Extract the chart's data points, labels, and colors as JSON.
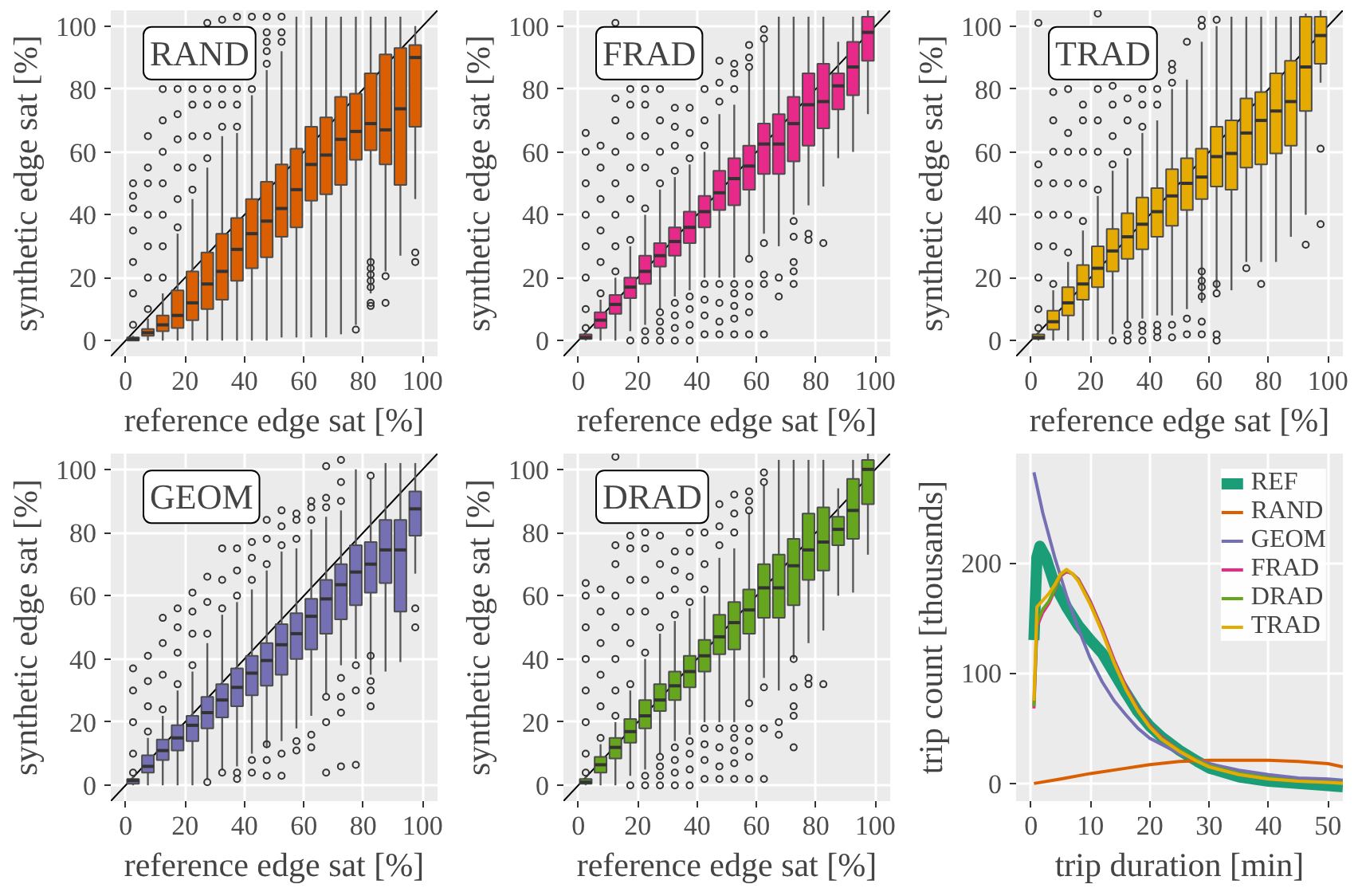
{
  "chart_data": [
    {
      "type": "box",
      "title": "RAND",
      "color": "#d95f02",
      "xlabel": "reference edge sat [%]",
      "ylabel": "synthetic edge sat [%]",
      "xlim": [
        -5,
        105
      ],
      "ylim": [
        -5,
        105
      ],
      "xticks": [
        0,
        20,
        40,
        60,
        80,
        100
      ],
      "yticks": [
        0,
        20,
        40,
        60,
        80,
        100
      ],
      "grid": true,
      "x": [
        2.5,
        7.5,
        12.5,
        17.5,
        22.5,
        27.5,
        32.5,
        37.5,
        42.5,
        47.5,
        52.5,
        57.5,
        62.5,
        67.5,
        72.5,
        77.5,
        82.5,
        87.5,
        92.5,
        97.5
      ],
      "boxes": [
        {
          "low": 0,
          "q1": 0,
          "median": 0.5,
          "q3": 1,
          "high": 1.5,
          "outliers": [
            5,
            15,
            25,
            35,
            42,
            46,
            50
          ]
        },
        {
          "low": 0,
          "q1": 1.5,
          "median": 2.5,
          "q3": 3.7,
          "high": 7,
          "outliers": [
            10,
            20,
            30,
            40,
            50,
            55,
            65
          ]
        },
        {
          "low": 0,
          "q1": 3,
          "median": 5,
          "q3": 8,
          "high": 15,
          "outliers": [
            20,
            30,
            40,
            50,
            60,
            70,
            80
          ]
        },
        {
          "low": 0,
          "q1": 4,
          "median": 8,
          "q3": 16,
          "high": 34,
          "outliers": [
            36,
            45,
            55,
            64,
            72,
            80
          ]
        },
        {
          "low": 0,
          "q1": 6.5,
          "median": 12,
          "q3": 22,
          "high": 45,
          "outliers": [
            48,
            55,
            65,
            75,
            80
          ]
        },
        {
          "low": 0,
          "q1": 10,
          "median": 18,
          "q3": 28,
          "high": 55,
          "outliers": [
            58,
            65,
            75,
            80,
            101
          ]
        },
        {
          "low": 0,
          "q1": 13,
          "median": 22,
          "q3": 34,
          "high": 65,
          "outliers": [
            68,
            75,
            80,
            102
          ]
        },
        {
          "low": 0,
          "q1": 19,
          "median": 29,
          "q3": 39,
          "high": 66,
          "outliers": [
            68,
            75,
            80,
            103
          ]
        },
        {
          "low": 0,
          "q1": 23,
          "median": 34,
          "q3": 45,
          "high": 78,
          "outliers": [
            80,
            103
          ]
        },
        {
          "low": 0,
          "q1": 26.5,
          "median": 38,
          "q3": 50.5,
          "high": 86,
          "outliers": [
            88,
            92,
            95,
            98,
            103
          ]
        },
        {
          "low": 1,
          "q1": 33,
          "median": 42,
          "q3": 56,
          "high": 92,
          "outliers": [
            95,
            98,
            103
          ]
        },
        {
          "low": 1,
          "q1": 36,
          "median": 48,
          "q3": 61,
          "high": 103
        },
        {
          "low": 1,
          "q1": 44.5,
          "median": 56,
          "q3": 68,
          "high": 103
        },
        {
          "low": 1,
          "q1": 46.5,
          "median": 59,
          "q3": 71,
          "high": 103
        },
        {
          "low": 2,
          "q1": 49.5,
          "median": 64,
          "q3": 77.5,
          "high": 103
        },
        {
          "low": 5,
          "q1": 57.5,
          "median": 66.5,
          "q3": 78.5,
          "high": 103,
          "outliers": [
            3.5
          ]
        },
        {
          "low": 15,
          "q1": 60.5,
          "median": 69,
          "q3": 85,
          "high": 103,
          "outliers": [
            11,
            12,
            17,
            19,
            21,
            23,
            25
          ]
        },
        {
          "low": 22,
          "q1": 56,
          "median": 67,
          "q3": 91,
          "high": 103,
          "outliers": [
            12,
            20.5
          ]
        },
        {
          "low": 27,
          "q1": 49.5,
          "median": 73.7,
          "q3": 93,
          "high": 103
        },
        {
          "low": 45,
          "q1": 68,
          "median": 90,
          "q3": 94,
          "high": 100,
          "outliers": [
            25,
            28
          ]
        }
      ],
      "series": [
        {
          "type": "line",
          "x": [
            -5,
            105
          ],
          "values": [
            -5,
            105
          ],
          "color": "#000000"
        }
      ]
    },
    {
      "type": "box",
      "title": "FRAD",
      "color": "#e7298a",
      "xlabel": "reference edge sat [%]",
      "ylabel": "synthetic edge sat [%]",
      "xlim": [
        -5,
        105
      ],
      "ylim": [
        -5,
        105
      ],
      "xticks": [
        0,
        20,
        40,
        60,
        80,
        100
      ],
      "yticks": [
        0,
        20,
        40,
        60,
        80,
        100
      ],
      "grid": true,
      "x": [
        2.5,
        7.5,
        12.5,
        17.5,
        22.5,
        27.5,
        32.5,
        37.5,
        42.5,
        47.5,
        52.5,
        57.5,
        62.5,
        67.5,
        72.5,
        77.5,
        82.5,
        87.5,
        92.5,
        97.5
      ],
      "boxes": [
        {
          "low": 0,
          "q1": 0.5,
          "median": 1,
          "q3": 2,
          "high": 3,
          "outliers": [
            4,
            10,
            20,
            30,
            40,
            50,
            60,
            66
          ]
        },
        {
          "low": 0,
          "q1": 4,
          "median": 6.5,
          "q3": 9,
          "high": 13,
          "outliers": [
            15,
            25,
            35,
            45,
            55,
            62
          ]
        },
        {
          "low": 0,
          "q1": 8.5,
          "median": 11.5,
          "q3": 14.5,
          "high": 20,
          "outliers": [
            22,
            30,
            40,
            50,
            60,
            70,
            77,
            101
          ]
        },
        {
          "low": 3,
          "q1": 13.5,
          "median": 17,
          "q3": 20,
          "high": 30,
          "outliers": [
            0,
            32,
            45,
            55,
            65,
            75,
            80
          ]
        },
        {
          "low": 5,
          "q1": 18,
          "median": 22,
          "q3": 27,
          "high": 40,
          "outliers": [
            0,
            3,
            42,
            55,
            65,
            75,
            80
          ]
        },
        {
          "low": 10,
          "q1": 23.5,
          "median": 27,
          "q3": 31,
          "high": 48,
          "outliers": [
            0,
            3,
            6,
            9,
            50,
            60,
            70,
            80
          ]
        },
        {
          "low": 14,
          "q1": 27,
          "median": 31.5,
          "q3": 36,
          "high": 52,
          "outliers": [
            0,
            4,
            8,
            12,
            54,
            62,
            68,
            74
          ]
        },
        {
          "low": 16,
          "q1": 31,
          "median": 36,
          "q3": 41,
          "high": 56,
          "outliers": [
            0,
            5,
            10,
            14,
            58,
            66,
            74
          ]
        },
        {
          "low": 20,
          "q1": 36,
          "median": 41,
          "q3": 46,
          "high": 60,
          "outliers": [
            2,
            8,
            13,
            18,
            62,
            70,
            80
          ]
        },
        {
          "low": 20,
          "q1": 41.5,
          "median": 47,
          "q3": 54,
          "high": 72,
          "outliers": [
            2,
            6,
            12,
            18,
            76,
            82,
            89
          ]
        },
        {
          "low": 20,
          "q1": 43,
          "median": 51.5,
          "q3": 58,
          "high": 75,
          "outliers": [
            2,
            7,
            11,
            15,
            18,
            80,
            85,
            88
          ]
        },
        {
          "low": 27,
          "q1": 48,
          "median": 55.5,
          "q3": 62,
          "high": 86,
          "outliers": [
            2,
            9,
            14,
            18,
            26,
            87,
            90,
            94
          ]
        },
        {
          "low": 34,
          "q1": 53,
          "median": 62.5,
          "q3": 69,
          "high": 95,
          "outliers": [
            2,
            18,
            21,
            31,
            96,
            99
          ]
        },
        {
          "low": 30,
          "q1": 53,
          "median": 62.5,
          "q3": 72,
          "high": 103,
          "outliers": [
            14,
            20
          ]
        },
        {
          "low": 40,
          "q1": 57,
          "median": 69,
          "q3": 77.5,
          "high": 103,
          "outliers": [
            18,
            22,
            25,
            33,
            38
          ]
        },
        {
          "low": 43,
          "q1": 62,
          "median": 75,
          "q3": 85,
          "high": 103,
          "outliers": [
            32,
            34
          ]
        },
        {
          "low": 49,
          "q1": 67.5,
          "median": 76,
          "q3": 88,
          "high": 103,
          "outliers": [
            31
          ]
        },
        {
          "low": 58,
          "q1": 73.5,
          "median": 81,
          "q3": 85,
          "high": 95
        },
        {
          "low": 60,
          "q1": 78,
          "median": 87,
          "q3": 95,
          "high": 103
        },
        {
          "low": 72,
          "q1": 89,
          "median": 98,
          "q3": 103,
          "high": 105
        }
      ],
      "series": [
        {
          "type": "line",
          "x": [
            -5,
            105
          ],
          "values": [
            -5,
            105
          ],
          "color": "#000000"
        }
      ]
    },
    {
      "type": "box",
      "title": "TRAD",
      "color": "#e6ab02",
      "xlabel": "reference edge sat [%]",
      "ylabel": "synthetic edge sat [%]",
      "xlim": [
        -5,
        105
      ],
      "ylim": [
        -5,
        105
      ],
      "xticks": [
        0,
        20,
        40,
        60,
        80,
        100
      ],
      "yticks": [
        0,
        20,
        40,
        60,
        80,
        100
      ],
      "grid": true,
      "x": [
        2.5,
        7.5,
        12.5,
        17.5,
        22.5,
        27.5,
        32.5,
        37.5,
        42.5,
        47.5,
        52.5,
        57.5,
        62.5,
        67.5,
        72.5,
        77.5,
        82.5,
        87.5,
        92.5,
        97.5
      ],
      "boxes": [
        {
          "low": 0,
          "q1": 0.5,
          "median": 1,
          "q3": 2,
          "high": 3,
          "outliers": [
            4,
            10,
            20,
            30,
            40,
            50,
            56,
            101
          ]
        },
        {
          "low": 0,
          "q1": 3.5,
          "median": 6,
          "q3": 9.5,
          "high": 16,
          "outliers": [
            18,
            30,
            40,
            50,
            60,
            70,
            79
          ]
        },
        {
          "low": 0,
          "q1": 8,
          "median": 12,
          "q3": 17,
          "high": 25,
          "outliers": [
            28,
            40,
            50,
            60,
            66,
            80
          ]
        },
        {
          "low": 0,
          "q1": 13,
          "median": 18,
          "q3": 24,
          "high": 35,
          "outliers": [
            38,
            50,
            60,
            70,
            75
          ]
        },
        {
          "low": 0,
          "q1": 17,
          "median": 23,
          "q3": 30,
          "high": 46,
          "outliers": [
            48,
            60,
            70,
            80,
            104
          ]
        },
        {
          "low": 2,
          "q1": 22,
          "median": 28.5,
          "q3": 35.5,
          "high": 54,
          "outliers": [
            0,
            56,
            65,
            75,
            81
          ]
        },
        {
          "low": 6,
          "q1": 26,
          "median": 33,
          "q3": 40.5,
          "high": 58,
          "outliers": [
            0,
            2,
            5,
            60,
            70,
            77
          ]
        },
        {
          "low": 7,
          "q1": 29,
          "median": 37,
          "q3": 45.5,
          "high": 66,
          "outliers": [
            0,
            3,
            5,
            68,
            75,
            80
          ]
        },
        {
          "low": 8,
          "q1": 33,
          "median": 41,
          "q3": 48.5,
          "high": 70,
          "outliers": [
            1,
            3,
            5,
            75,
            80
          ]
        },
        {
          "low": 8,
          "q1": 36.5,
          "median": 46,
          "q3": 54.5,
          "high": 80,
          "outliers": [
            1,
            5,
            82,
            86,
            88
          ]
        },
        {
          "low": 10,
          "q1": 41.5,
          "median": 50,
          "q3": 58,
          "high": 83,
          "outliers": [
            2,
            7,
            95
          ]
        },
        {
          "low": 12,
          "q1": 45,
          "median": 52,
          "q3": 61,
          "high": 95,
          "outliers": [
            2,
            6,
            14,
            17,
            19,
            22,
            100,
            102
          ]
        },
        {
          "low": 16,
          "q1": 49,
          "median": 58.5,
          "q3": 68,
          "high": 100,
          "outliers": [
            0,
            2,
            15,
            18,
            102
          ]
        },
        {
          "low": 16,
          "q1": 48,
          "median": 59.5,
          "q3": 70,
          "high": 103
        },
        {
          "low": 25,
          "q1": 55,
          "median": 66,
          "q3": 77,
          "high": 103,
          "outliers": [
            23
          ]
        },
        {
          "low": 25,
          "q1": 56,
          "median": 70,
          "q3": 79,
          "high": 103,
          "outliers": [
            18
          ]
        },
        {
          "low": 25,
          "q1": 59.5,
          "median": 73,
          "q3": 85,
          "high": 103
        },
        {
          "low": 33,
          "q1": 62,
          "median": 76,
          "q3": 89,
          "high": 103
        },
        {
          "low": 40,
          "q1": 73,
          "median": 87,
          "q3": 103,
          "high": 104,
          "outliers": [
            30.5
          ]
        },
        {
          "low": 82,
          "q1": 88,
          "median": 97,
          "q3": 103,
          "high": 105,
          "outliers": [
            37,
            61
          ]
        }
      ],
      "series": [
        {
          "type": "line",
          "x": [
            -5,
            105
          ],
          "values": [
            -5,
            105
          ],
          "color": "#000000"
        }
      ]
    },
    {
      "type": "box",
      "title": "GEOM",
      "color": "#7570b3",
      "xlabel": "reference edge sat [%]",
      "ylabel": "synthetic edge sat [%]",
      "xlim": [
        -5,
        105
      ],
      "ylim": [
        -5,
        105
      ],
      "xticks": [
        0,
        20,
        40,
        60,
        80,
        100
      ],
      "yticks": [
        0,
        20,
        40,
        60,
        80,
        100
      ],
      "grid": true,
      "x": [
        2.5,
        7.5,
        12.5,
        17.5,
        22.5,
        27.5,
        32.5,
        37.5,
        42.5,
        47.5,
        52.5,
        57.5,
        62.5,
        67.5,
        72.5,
        77.5,
        82.5,
        87.5,
        92.5,
        97.5
      ],
      "boxes": [
        {
          "low": 0,
          "q1": 0.5,
          "median": 1.5,
          "q3": 2,
          "high": 3,
          "outliers": [
            4,
            10,
            20,
            30,
            37
          ]
        },
        {
          "low": 0,
          "q1": 4,
          "median": 6,
          "q3": 9.5,
          "high": 15,
          "outliers": [
            17,
            25,
            33,
            41
          ]
        },
        {
          "low": 0,
          "q1": 8,
          "median": 11,
          "q3": 14.5,
          "high": 22,
          "outliers": [
            24,
            35,
            45,
            53
          ]
        },
        {
          "low": 0,
          "q1": 11,
          "median": 15,
          "q3": 19,
          "high": 30,
          "outliers": [
            32,
            42,
            50,
            56
          ]
        },
        {
          "low": 0,
          "q1": 14,
          "median": 19,
          "q3": 22,
          "high": 36,
          "outliers": [
            38,
            48,
            55,
            61
          ]
        },
        {
          "low": 2,
          "q1": 18,
          "median": 23,
          "q3": 28,
          "high": 45,
          "outliers": [
            1,
            48,
            58,
            66
          ]
        },
        {
          "low": 5,
          "q1": 21.5,
          "median": 27,
          "q3": 32,
          "high": 54,
          "outliers": [
            4,
            56,
            65,
            75
          ]
        },
        {
          "low": 6,
          "q1": 25,
          "median": 31,
          "q3": 37,
          "high": 58,
          "outliers": [
            2,
            4,
            60,
            68,
            75
          ]
        },
        {
          "low": 10,
          "q1": 28.5,
          "median": 35.5,
          "q3": 41,
          "high": 62,
          "outliers": [
            4,
            8,
            65,
            72,
            77
          ]
        },
        {
          "low": 12,
          "q1": 31.5,
          "median": 39.5,
          "q3": 45,
          "high": 68,
          "outliers": [
            3,
            8,
            13,
            70,
            78,
            84
          ]
        },
        {
          "low": 14,
          "q1": 35,
          "median": 44.5,
          "q3": 51,
          "high": 74,
          "outliers": [
            3,
            10,
            76,
            82,
            87
          ]
        },
        {
          "low": 18,
          "q1": 40,
          "median": 48,
          "q3": 54.5,
          "high": 75,
          "outliers": [
            11,
            14,
            78,
            84,
            86
          ]
        },
        {
          "low": 22,
          "q1": 43,
          "median": 53.5,
          "q3": 59,
          "high": 81,
          "outliers": [
            12,
            16,
            84,
            88,
            90
          ]
        },
        {
          "low": 29,
          "q1": 48,
          "median": 59,
          "q3": 65,
          "high": 85,
          "outliers": [
            4,
            20,
            28,
            88,
            91,
            101
          ]
        },
        {
          "low": 38,
          "q1": 52.5,
          "median": 63.5,
          "q3": 70,
          "high": 87,
          "outliers": [
            6,
            23,
            28,
            34,
            90,
            96,
            103
          ]
        },
        {
          "low": 40,
          "q1": 57,
          "median": 67.5,
          "q3": 76,
          "high": 100,
          "outliers": [
            6.5,
            30,
            38
          ]
        },
        {
          "low": 35,
          "q1": 61,
          "median": 70,
          "q3": 77,
          "high": 97,
          "outliers": [
            25,
            30,
            33,
            41,
            98
          ]
        },
        {
          "low": 36,
          "q1": 64,
          "median": 74.5,
          "q3": 84,
          "high": 102
        },
        {
          "low": 39,
          "q1": 55,
          "median": 74.5,
          "q3": 84,
          "high": 102
        },
        {
          "low": 67,
          "q1": 79,
          "median": 87.5,
          "q3": 93,
          "high": 102,
          "outliers": [
            50,
            56
          ]
        }
      ],
      "series": [
        {
          "type": "line",
          "x": [
            -5,
            105
          ],
          "values": [
            -5,
            105
          ],
          "color": "#000000"
        }
      ]
    },
    {
      "type": "box",
      "title": "DRAD",
      "color": "#66a61e",
      "xlabel": "reference edge sat [%]",
      "ylabel": "synthetic edge sat [%]",
      "xlim": [
        -5,
        105
      ],
      "ylim": [
        -5,
        105
      ],
      "xticks": [
        0,
        20,
        40,
        60,
        80,
        100
      ],
      "yticks": [
        0,
        20,
        40,
        60,
        80,
        100
      ],
      "grid": true,
      "x": [
        2.5,
        7.5,
        12.5,
        17.5,
        22.5,
        27.5,
        32.5,
        37.5,
        42.5,
        47.5,
        52.5,
        57.5,
        62.5,
        67.5,
        72.5,
        77.5,
        82.5,
        87.5,
        92.5,
        97.5
      ],
      "boxes": [
        {
          "low": 0,
          "q1": 0.5,
          "median": 1,
          "q3": 2,
          "high": 3,
          "outliers": [
            4,
            10,
            20,
            30,
            40,
            50,
            60,
            64
          ]
        },
        {
          "low": 0,
          "q1": 4,
          "median": 6.5,
          "q3": 9,
          "high": 13,
          "outliers": [
            15,
            25,
            35,
            45,
            55,
            62
          ]
        },
        {
          "low": 0,
          "q1": 8.5,
          "median": 12,
          "q3": 15,
          "high": 20,
          "outliers": [
            22,
            30,
            40,
            50,
            60,
            70,
            76,
            104
          ]
        },
        {
          "low": 3,
          "q1": 13.5,
          "median": 17,
          "q3": 21,
          "high": 30,
          "outliers": [
            0,
            32,
            45,
            55,
            65,
            75,
            79
          ]
        },
        {
          "low": 5,
          "q1": 18,
          "median": 22,
          "q3": 27,
          "high": 40,
          "outliers": [
            0,
            3,
            42,
            55,
            65,
            75,
            80
          ]
        },
        {
          "low": 10,
          "q1": 23.5,
          "median": 27,
          "q3": 32,
          "high": 48,
          "outliers": [
            0,
            3,
            6,
            9,
            50,
            60,
            70,
            79
          ]
        },
        {
          "low": 14,
          "q1": 27,
          "median": 31.5,
          "q3": 36,
          "high": 52,
          "outliers": [
            0,
            4,
            8,
            12,
            54,
            62,
            68,
            74
          ]
        },
        {
          "low": 16,
          "q1": 31,
          "median": 36,
          "q3": 41,
          "high": 56,
          "outliers": [
            0,
            5,
            10,
            14,
            58,
            66,
            74,
            80
          ]
        },
        {
          "low": 20,
          "q1": 36,
          "median": 41,
          "q3": 46,
          "high": 60,
          "outliers": [
            2,
            8,
            13,
            18,
            62,
            70,
            80
          ]
        },
        {
          "low": 20,
          "q1": 41.5,
          "median": 47,
          "q3": 54,
          "high": 72,
          "outliers": [
            2,
            6,
            12,
            18,
            76,
            82,
            89
          ]
        },
        {
          "low": 20,
          "q1": 43,
          "median": 51.5,
          "q3": 58,
          "high": 75,
          "outliers": [
            2,
            7,
            11,
            15,
            18,
            80,
            86,
            92
          ]
        },
        {
          "low": 27,
          "q1": 48,
          "median": 55.5,
          "q3": 62,
          "high": 86,
          "outliers": [
            2,
            9,
            14,
            18,
            26,
            87,
            90,
            93
          ]
        },
        {
          "low": 34,
          "q1": 53,
          "median": 62.5,
          "q3": 70,
          "high": 95,
          "outliers": [
            2,
            18,
            31,
            96,
            99
          ]
        },
        {
          "low": 30,
          "q1": 53,
          "median": 62.5,
          "q3": 73,
          "high": 103,
          "outliers": [
            16,
            20
          ]
        },
        {
          "low": 40,
          "q1": 57,
          "median": 69.5,
          "q3": 78,
          "high": 103,
          "outliers": [
            12,
            22,
            25,
            31,
            40
          ]
        },
        {
          "low": 45,
          "q1": 65,
          "median": 74.5,
          "q3": 86,
          "high": 103,
          "outliers": [
            32,
            34
          ]
        },
        {
          "low": 49,
          "q1": 68,
          "median": 77,
          "q3": 88,
          "high": 103,
          "outliers": [
            32
          ]
        },
        {
          "low": 60,
          "q1": 76,
          "median": 81,
          "q3": 85,
          "high": 94
        },
        {
          "low": 61,
          "q1": 78,
          "median": 87,
          "q3": 97,
          "high": 103
        },
        {
          "low": 73,
          "q1": 89,
          "median": 100,
          "q3": 103,
          "high": 105
        }
      ],
      "series": [
        {
          "type": "line",
          "x": [
            -5,
            105
          ],
          "values": [
            -5,
            105
          ],
          "color": "#000000"
        }
      ]
    },
    {
      "type": "line",
      "xlabel": "trip duration [min]",
      "ylabel": "trip count [thousands]",
      "xlim": [
        -2.5,
        52.5
      ],
      "ylim": [
        -16,
        299
      ],
      "xticks": [
        0,
        10,
        20,
        30,
        40,
        50
      ],
      "yticks": [
        0,
        100,
        200
      ],
      "grid": true,
      "legend": "top right",
      "series": [
        {
          "name": "REF",
          "color": "#1b9e77",
          "x": [
            0.5,
            1,
            1.5,
            2.5,
            4,
            6,
            8,
            10,
            12,
            14,
            16,
            18,
            20,
            22,
            25,
            28,
            30,
            35,
            40,
            45,
            50,
            52.5
          ],
          "values": [
            130,
            205,
            215,
            205,
            180,
            160,
            143,
            130,
            118,
            100,
            82,
            65,
            52,
            42,
            30,
            20,
            14,
            6,
            2,
            0,
            -2,
            -3
          ]
        },
        {
          "name": "RAND",
          "color": "#d95f02",
          "x": [
            0.5,
            5,
            10,
            15,
            20,
            25,
            30,
            35,
            40,
            45,
            50,
            52.5
          ],
          "values": [
            0,
            4,
            9,
            13,
            17,
            20,
            21,
            21,
            21,
            20,
            18,
            15
          ]
        },
        {
          "name": "GEOM",
          "color": "#7570b3",
          "x": [
            0.5,
            2,
            4,
            6,
            8,
            10,
            12,
            14,
            16,
            18,
            20,
            25,
            30,
            35,
            40,
            45,
            50,
            52.5
          ],
          "values": [
            282,
            245,
            205,
            170,
            140,
            113,
            92,
            75,
            62,
            50,
            41,
            27,
            18,
            12,
            8,
            5,
            4,
            3
          ]
        },
        {
          "name": "FRAD",
          "color": "#e7298a",
          "x": [
            0.5,
            1,
            2,
            3,
            4,
            5,
            6,
            7,
            8,
            10,
            12,
            14,
            16,
            18,
            20,
            22,
            25,
            28
          ],
          "values": [
            68,
            142,
            155,
            163,
            175,
            188,
            192,
            190,
            185,
            165,
            140,
            112,
            88,
            68,
            53,
            42,
            30,
            21
          ]
        },
        {
          "name": "DRAD",
          "color": "#66a61e",
          "x": [
            0.5,
            1,
            2,
            3,
            4,
            5,
            6,
            7,
            8,
            10,
            12,
            14,
            16,
            18,
            20,
            22,
            25,
            28,
            30,
            35,
            40,
            45,
            50,
            52.5
          ],
          "values": [
            70,
            145,
            158,
            165,
            176,
            189,
            193,
            190,
            184,
            163,
            138,
            110,
            86,
            67,
            52,
            41,
            30,
            21,
            16,
            9,
            5,
            2,
            1,
            1
          ]
        },
        {
          "name": "TRAD",
          "color": "#e6ab02",
          "x": [
            0.5,
            1,
            2,
            3,
            4,
            5,
            6,
            7,
            8,
            10,
            12,
            14,
            16,
            18,
            20,
            22,
            25,
            28,
            30,
            35,
            40,
            45,
            50,
            52.5
          ],
          "values": [
            75,
            160,
            166,
            172,
            180,
            190,
            194,
            190,
            183,
            162,
            137,
            109,
            85,
            66,
            51,
            40,
            29,
            20,
            15,
            8,
            4,
            2,
            1,
            0
          ]
        }
      ]
    }
  ]
}
